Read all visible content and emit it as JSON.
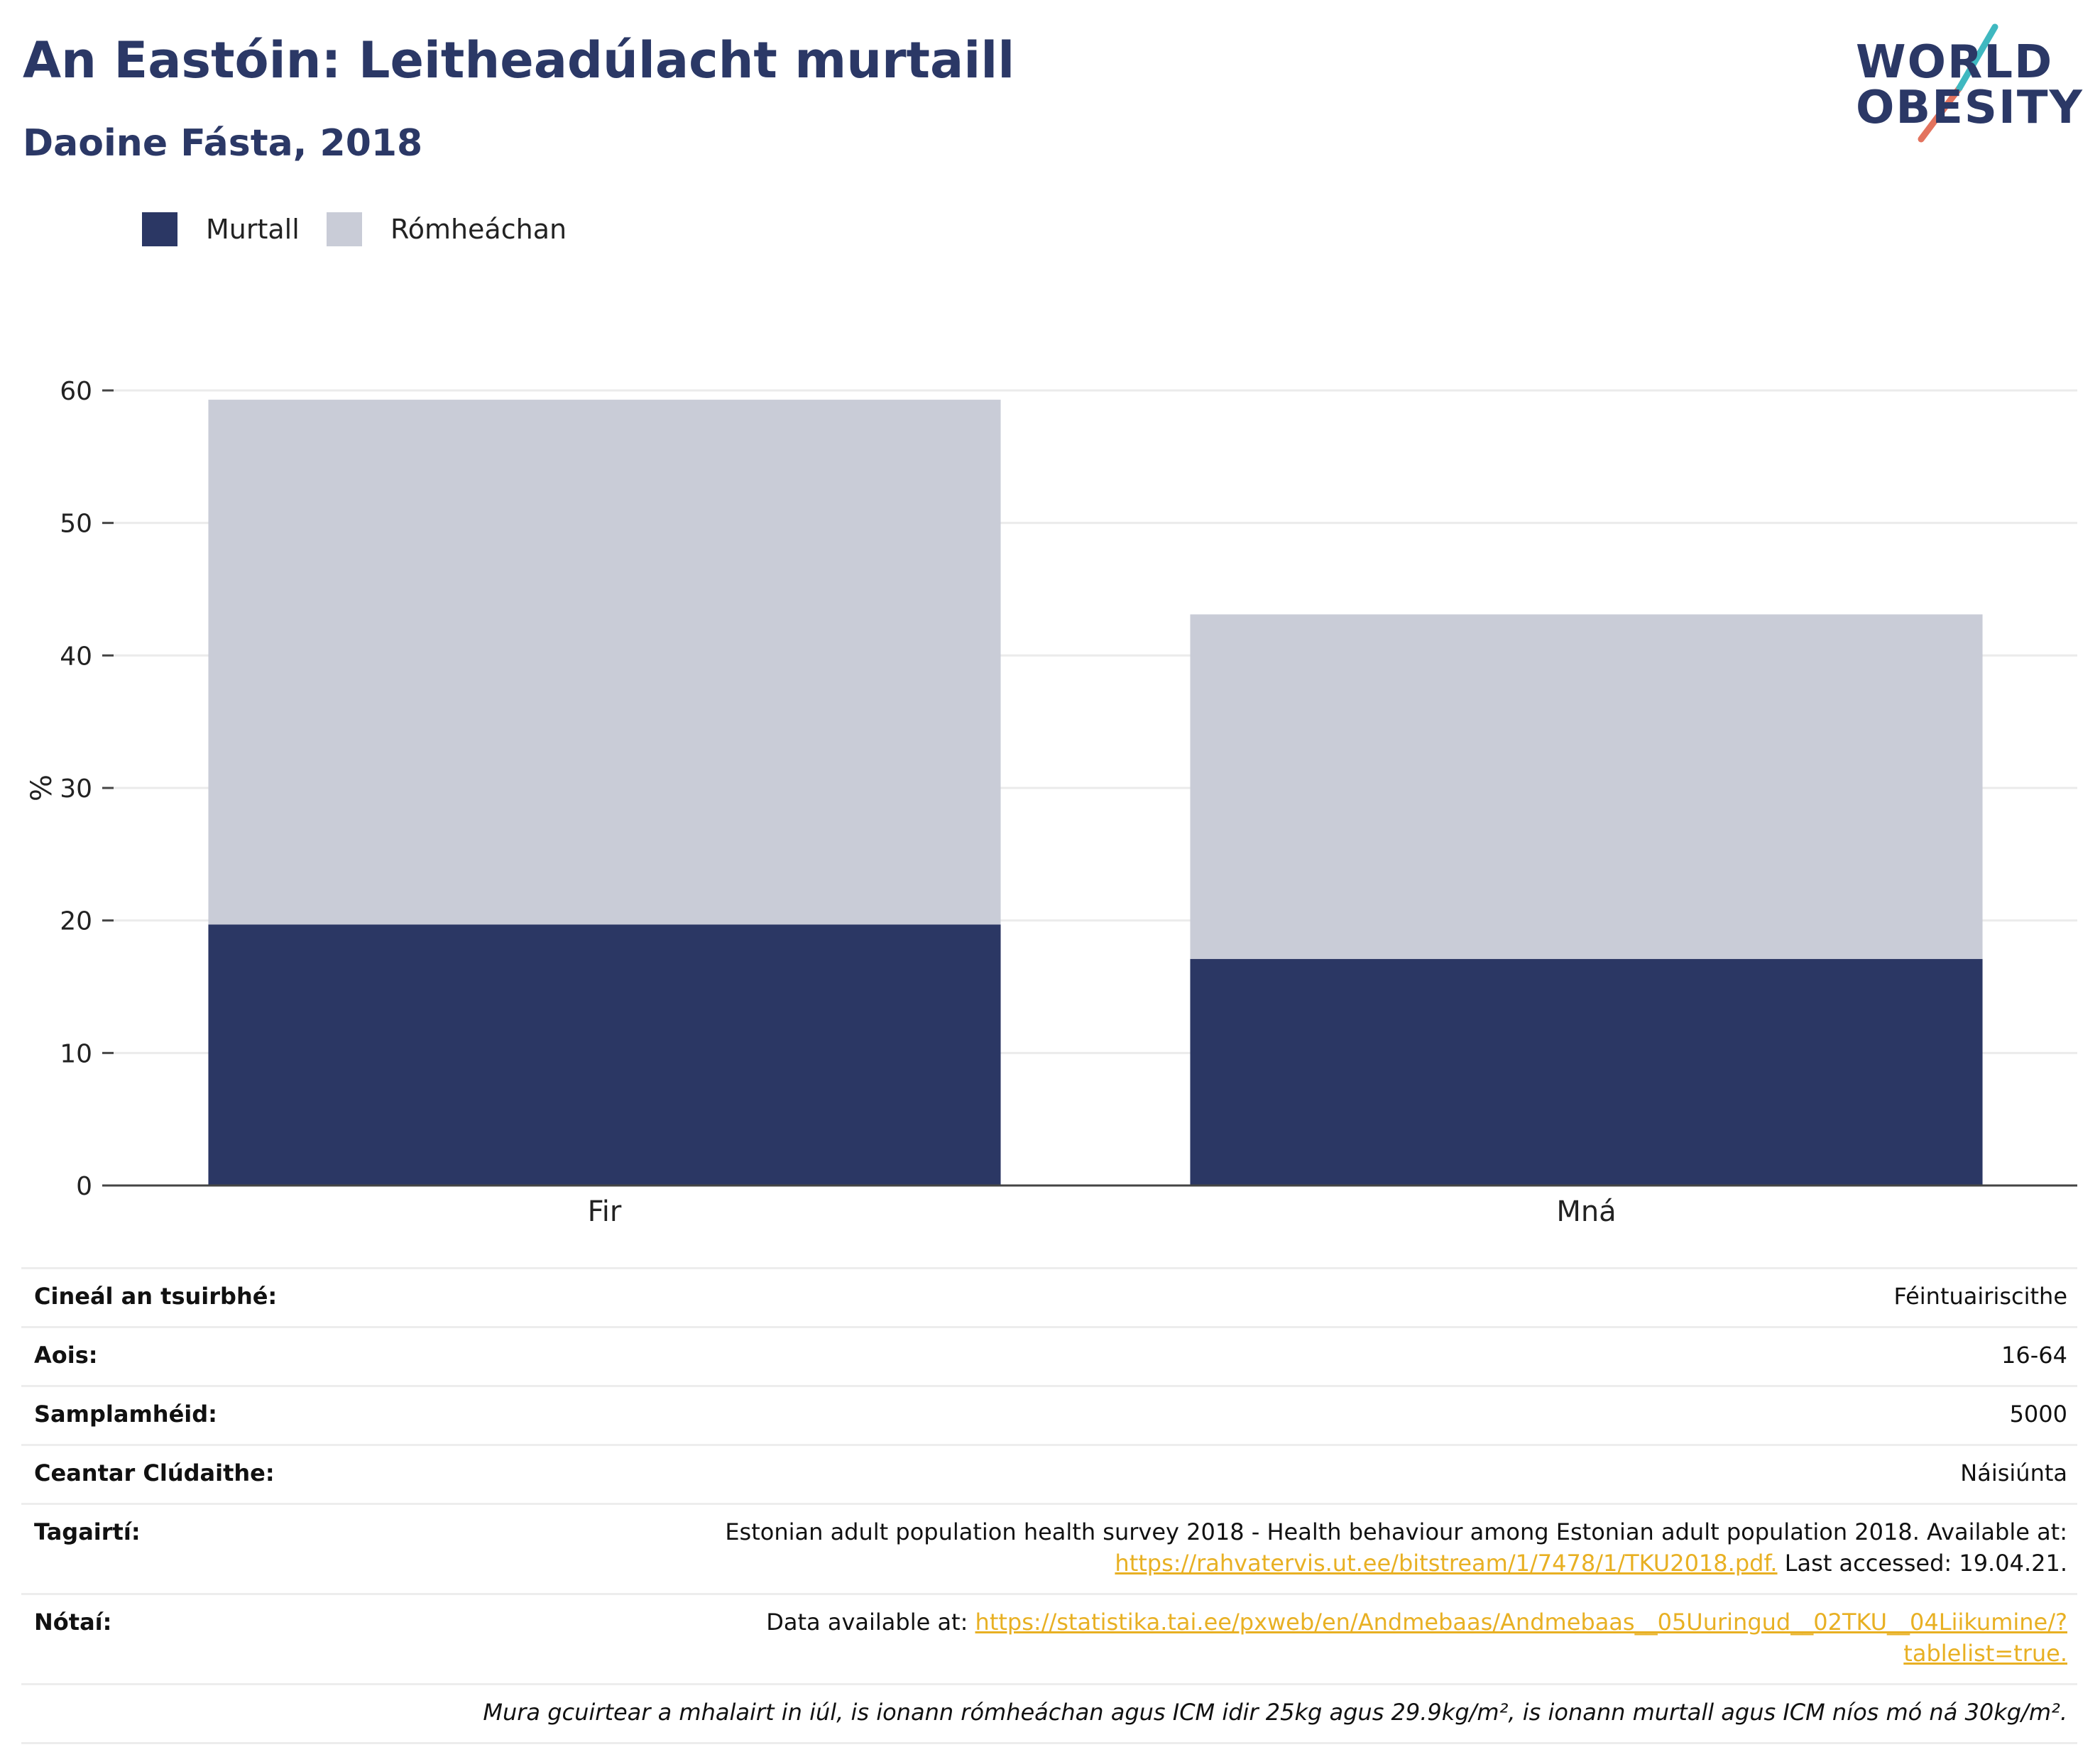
{
  "header": {
    "title": "An Eastóin: Leitheadúlacht murtaill",
    "subtitle": "Daoine Fásta, 2018"
  },
  "logo": {
    "line1": "WORLD",
    "line2": "OBESITY",
    "text_color": "#2b3866",
    "slash_colors": [
      "#3fb8c0",
      "#e3735e"
    ]
  },
  "chart_data": {
    "type": "bar",
    "stacked": true,
    "categories": [
      "Fir",
      "Mná"
    ],
    "series": [
      {
        "name": "Murtall",
        "color": "#2b3764",
        "values": [
          19.7,
          17.1
        ]
      },
      {
        "name": "Rómheáchan",
        "color": "#c9ccd7",
        "values": [
          39.6,
          26.0
        ]
      }
    ],
    "ylabel": "%",
    "ylim": [
      0,
      60
    ],
    "yticks": [
      0,
      10,
      20,
      30,
      40,
      50,
      60
    ],
    "grid": true,
    "legend_position": "top-left"
  },
  "info": {
    "survey_type": {
      "label": "Cineál an tsuirbhé:",
      "value": "Féintuairiscithe"
    },
    "age": {
      "label": "Aois:",
      "value": "16-64"
    },
    "sample_size": {
      "label": "Samplamhéid:",
      "value": "5000"
    },
    "coverage": {
      "label": "Ceantar Clúdaithe:",
      "value": "Náisiúnta"
    },
    "references": {
      "label": "Tagairtí:",
      "text": "Estonian adult population health survey 2018 - Health behaviour among Estonian adult population 2018. Available at:",
      "link": "https://rahvatervis.ut.ee/bitstream/1/7478/1/TKU2018.pdf.",
      "suffix": "Last accessed: 19.04.21."
    },
    "notes": {
      "label": "Nótaí:",
      "prefix": "Data available at:",
      "link": "https://statistika.tai.ee/pxweb/en/Andmebaas/Andmebaas__05Uuringud__02TKU__04Liikumine/?tablelist=true."
    },
    "footnote": "Mura gcuirtear a mhalairt in iúl, is ionann rómheáchan agus ICM idir 25kg agus 29.9kg/m², is ionann murtall agus ICM níos mó ná 30kg/m²."
  }
}
